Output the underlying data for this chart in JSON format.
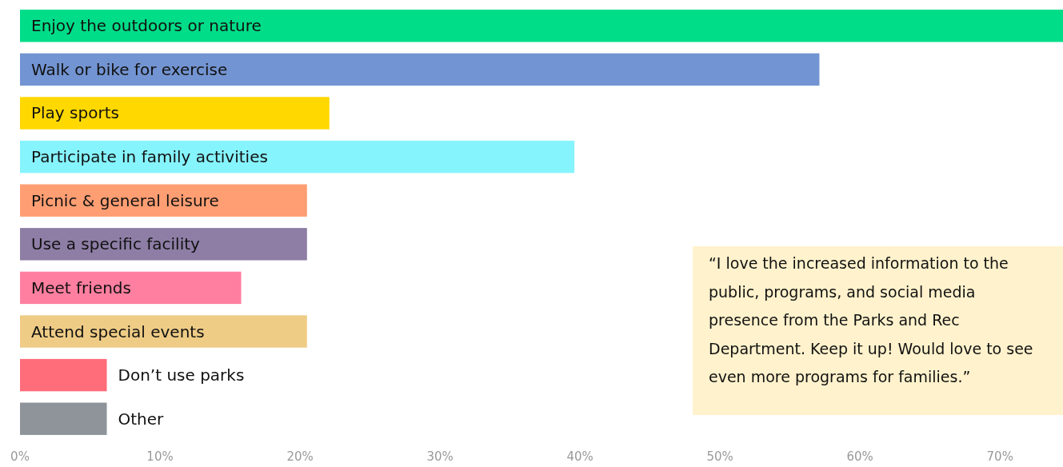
{
  "chart_data": {
    "type": "bar",
    "orientation": "horizontal",
    "categories": [
      "Enjoy the outdoors or nature",
      "Walk or bike for exercise",
      "Play sports",
      "Participate in family activities",
      "Picnic & general leisure",
      "Use a specific facility",
      "Meet friends",
      "Attend special events",
      "Don’t use parks",
      "Other"
    ],
    "values": [
      74.5,
      57.1,
      22.1,
      39.6,
      20.5,
      20.5,
      15.8,
      20.5,
      6.2,
      6.2
    ],
    "colors": [
      "#00dd88",
      "#7394d2",
      "#ffd800",
      "#86f4fd",
      "#ff9e73",
      "#8e7ea6",
      "#ff7fa0",
      "#efcc86",
      "#ff6d7a",
      "#8e9499"
    ],
    "xlim": [
      0,
      74.5
    ],
    "xticks": [
      {
        "value": 0,
        "label": "0%"
      },
      {
        "value": 10,
        "label": "10%"
      },
      {
        "value": 20,
        "label": "20%"
      },
      {
        "value": 30,
        "label": "30%"
      },
      {
        "value": 40,
        "label": "40%"
      },
      {
        "value": 50,
        "label": "50%"
      },
      {
        "value": 60,
        "label": "60%"
      },
      {
        "value": 70,
        "label": "70%"
      }
    ],
    "grid": false,
    "annotations": [
      "“I love the increased information to the public, programs, and social media presence from the Parks and Rec Department. Keep it up! Would love to see even more programs for families.”"
    ]
  }
}
